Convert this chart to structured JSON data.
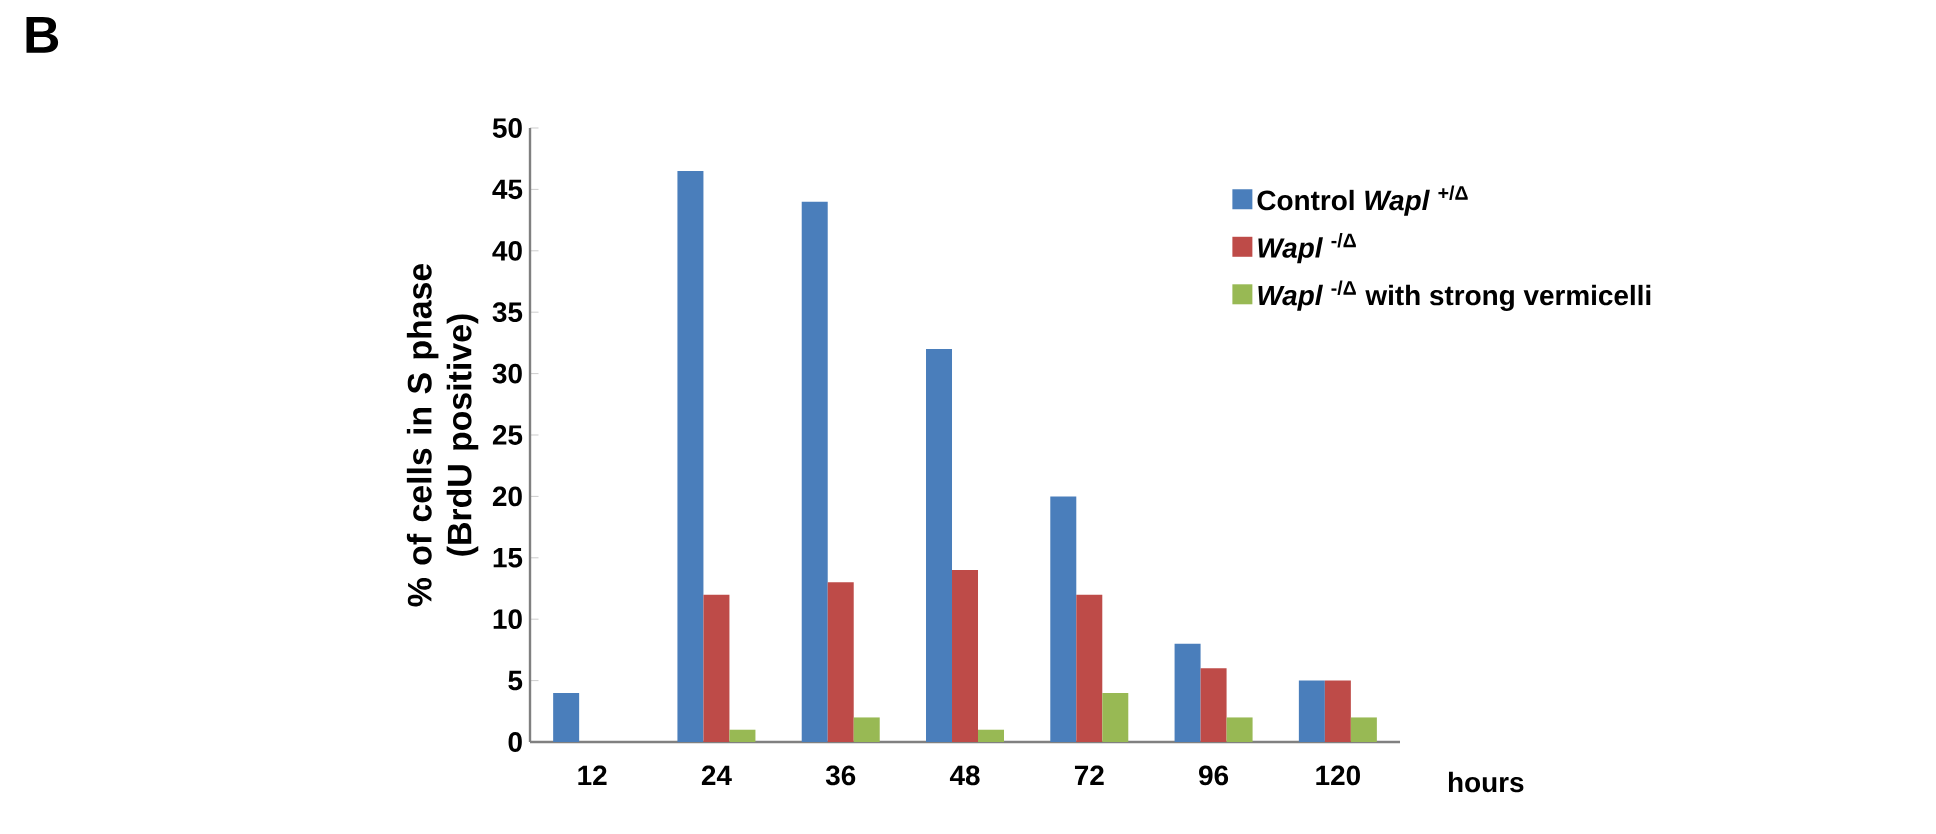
{
  "chart_data": {
    "type": "bar",
    "categories": [
      "12",
      "24",
      "36",
      "48",
      "72",
      "96",
      "120"
    ],
    "xlabel": "hours",
    "ylabel": "% of cells in S phase (BrdU positive)",
    "series": [
      {
        "name": "Control *Wapl* $^{+/Δ}$",
        "color": "#4a7ebb",
        "values": [
          4,
          46.5,
          44,
          32,
          20,
          8,
          5
        ]
      },
      {
        "name": "*Wapl* $^{-/Δ}$",
        "color": "#be4b48",
        "values": [
          0,
          12,
          13,
          14,
          12,
          6,
          5
        ]
      },
      {
        "name": "*Wapl* $^{-/Δ}$ with strong vermicelli",
        "color": "#98b954",
        "values": [
          0,
          1,
          2,
          1,
          4,
          2,
          2
        ]
      }
    ],
    "ylim": [
      0,
      50
    ],
    "yticks": [
      0,
      5,
      10,
      15,
      20,
      25,
      30,
      35,
      40,
      45,
      50
    ],
    "grid": false,
    "legend": "top right",
    "annotations": [
      "B"
    ]
  }
}
